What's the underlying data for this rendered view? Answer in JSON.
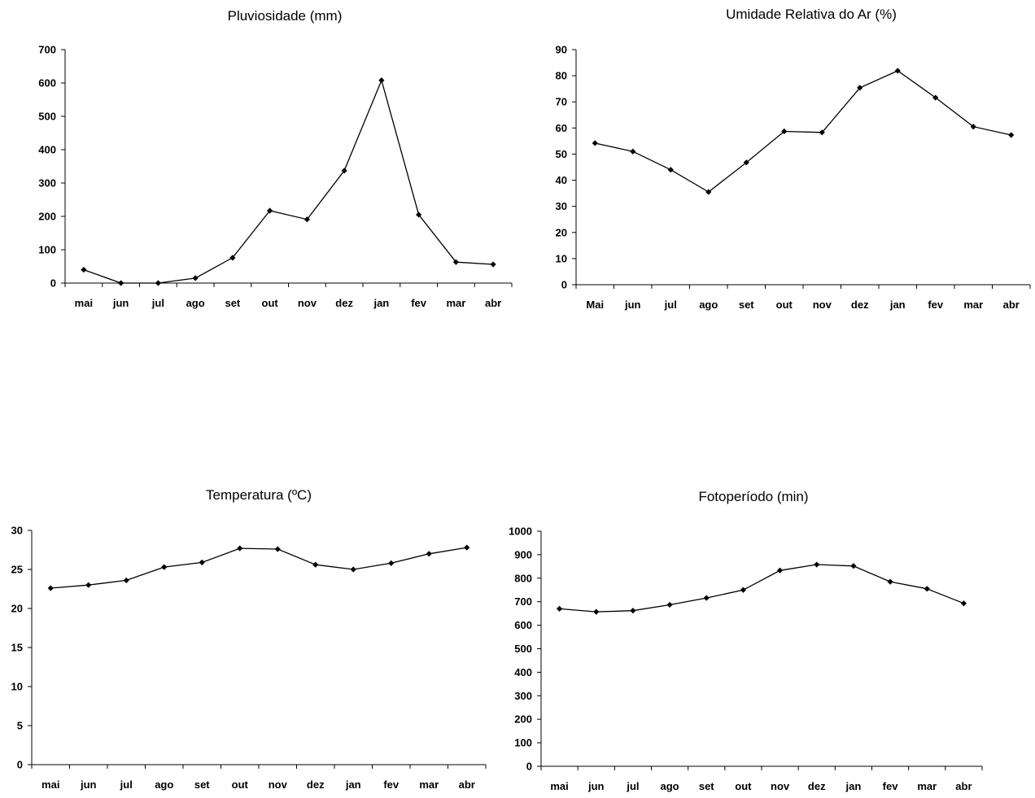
{
  "chart_data": [
    {
      "type": "line",
      "title": "Pluviosidade (mm)",
      "xlabel": "",
      "ylabel": "",
      "categories": [
        "mai",
        "jun",
        "jul",
        "ago",
        "set",
        "out",
        "nov",
        "dez",
        "jan",
        "fev",
        "mar",
        "abr"
      ],
      "values": [
        40,
        0,
        0,
        15,
        76,
        217,
        191,
        337,
        608,
        205,
        63,
        56
      ],
      "ylim": [
        0,
        700
      ],
      "yticks": [
        0,
        100,
        200,
        300,
        400,
        500,
        600,
        700
      ],
      "grid": false,
      "marker": "diamond",
      "color": "#000000"
    },
    {
      "type": "line",
      "title": "Umidade Relativa do Ar (%)",
      "xlabel": "",
      "ylabel": "",
      "categories": [
        "Mai",
        "jun",
        "jul",
        "ago",
        "set",
        "out",
        "nov",
        "dez",
        "jan",
        "fev",
        "mar",
        "abr"
      ],
      "values": [
        54.2,
        51,
        44,
        35.5,
        46.8,
        58.7,
        58.3,
        75.4,
        81.9,
        71.6,
        60.5,
        57.3
      ],
      "ylim": [
        0,
        90
      ],
      "yticks": [
        0,
        10,
        20,
        30,
        40,
        50,
        60,
        70,
        80,
        90
      ],
      "grid": false,
      "marker": "diamond",
      "color": "#000000"
    },
    {
      "type": "line",
      "title": "Temperatura (ºC)",
      "xlabel": "",
      "ylabel": "",
      "categories": [
        "mai",
        "jun",
        "jul",
        "ago",
        "set",
        "out",
        "nov",
        "dez",
        "jan",
        "fev",
        "mar",
        "abr"
      ],
      "values": [
        22.6,
        23,
        23.6,
        25.3,
        25.9,
        27.7,
        27.6,
        25.6,
        25,
        25.8,
        27,
        27.8
      ],
      "ylim": [
        0,
        30
      ],
      "yticks": [
        0,
        5,
        10,
        15,
        20,
        25,
        30
      ],
      "grid": false,
      "marker": "diamond",
      "color": "#000000"
    },
    {
      "type": "line",
      "title": "Fotoperíodo (min)",
      "xlabel": "",
      "ylabel": "",
      "categories": [
        "mai",
        "jun",
        "jul",
        "ago",
        "set",
        "out",
        "nov",
        "dez",
        "jan",
        "fev",
        "mar",
        "abr"
      ],
      "values": [
        670,
        657,
        662,
        687,
        716,
        750,
        833,
        858,
        852,
        785,
        755,
        693
      ],
      "ylim": [
        0,
        1000
      ],
      "yticks": [
        0,
        100,
        200,
        300,
        400,
        500,
        600,
        700,
        800,
        900,
        1000
      ],
      "grid": false,
      "marker": "diamond",
      "color": "#000000"
    }
  ]
}
